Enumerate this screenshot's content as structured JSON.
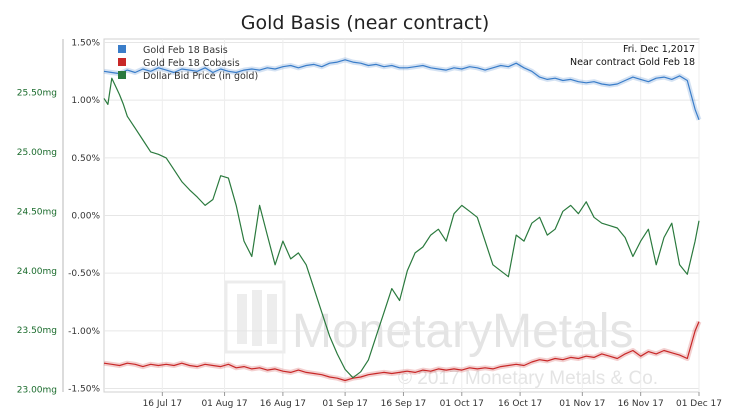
{
  "chart_data": {
    "type": "line",
    "title": "Gold Basis (near contract)",
    "info_lines": [
      "Fri. Dec 1,2017",
      "Near contract Gold Feb 18"
    ],
    "watermark": {
      "brand": "MonetaryMetals",
      "copyright": "© 2017 Monetary Metals & Co."
    },
    "x_tick_labels": [
      "16 Jul 17",
      "01 Aug 17",
      "16 Aug 17",
      "01 Sep 17",
      "16 Sep 17",
      "01 Oct 17",
      "16 Oct 17",
      "01 Nov 17",
      "16 Nov 17",
      "01 Dec 17"
    ],
    "x_tick_days": [
      15,
      31,
      46,
      62,
      77,
      92,
      107,
      123,
      138,
      153
    ],
    "xlim": [
      0,
      153
    ],
    "left_axis": {
      "ticks": [
        23.0,
        23.5,
        24.0,
        24.5,
        25.0,
        25.5
      ],
      "tick_labels": [
        "23.00mg",
        "23.50mg",
        "24.00mg",
        "24.50mg",
        "25.00mg",
        "25.50mg"
      ],
      "ylim": [
        22.98,
        25.95
      ],
      "color": "#1a6b2c"
    },
    "right_axis": {
      "ticks": [
        -1.5,
        -1.0,
        -0.5,
        0.0,
        0.5,
        1.0,
        1.5
      ],
      "tick_labels": [
        "-1.50%",
        "-1.00%",
        "-0.50%",
        "0.00%",
        "0.50%",
        "1.00%",
        "1.50%"
      ],
      "ylim": [
        -1.53,
        1.53
      ]
    },
    "grid": true,
    "legend_position": "top-left",
    "series": [
      {
        "name": "Gold Feb 18 Basis",
        "color": "#3a7dc9",
        "axis": "percent",
        "x": [
          0,
          2,
          4,
          6,
          8,
          10,
          12,
          14,
          16,
          18,
          20,
          22,
          24,
          26,
          28,
          30,
          32,
          34,
          36,
          38,
          40,
          42,
          44,
          46,
          48,
          50,
          52,
          54,
          56,
          58,
          60,
          62,
          64,
          66,
          68,
          70,
          72,
          74,
          76,
          78,
          80,
          82,
          84,
          86,
          88,
          90,
          92,
          94,
          96,
          98,
          100,
          102,
          104,
          106,
          108,
          110,
          112,
          114,
          116,
          118,
          120,
          122,
          124,
          126,
          128,
          130,
          132,
          134,
          136,
          138,
          140,
          142,
          144,
          146,
          148,
          150,
          152,
          153
        ],
        "values": [
          1.25,
          1.24,
          1.23,
          1.26,
          1.24,
          1.27,
          1.25,
          1.28,
          1.26,
          1.24,
          1.27,
          1.26,
          1.25,
          1.28,
          1.24,
          1.27,
          1.25,
          1.24,
          1.26,
          1.27,
          1.26,
          1.28,
          1.27,
          1.29,
          1.3,
          1.28,
          1.3,
          1.31,
          1.29,
          1.32,
          1.33,
          1.35,
          1.33,
          1.32,
          1.3,
          1.31,
          1.29,
          1.3,
          1.28,
          1.28,
          1.29,
          1.3,
          1.28,
          1.27,
          1.26,
          1.28,
          1.27,
          1.29,
          1.28,
          1.26,
          1.28,
          1.3,
          1.29,
          1.32,
          1.28,
          1.25,
          1.2,
          1.18,
          1.19,
          1.17,
          1.18,
          1.16,
          1.15,
          1.16,
          1.14,
          1.13,
          1.14,
          1.17,
          1.2,
          1.18,
          1.16,
          1.19,
          1.2,
          1.18,
          1.21,
          1.17,
          0.92,
          0.83
        ]
      },
      {
        "name": "Gold Feb 18 Cobasis",
        "color": "#c82828",
        "axis": "percent",
        "x": [
          0,
          2,
          4,
          6,
          8,
          10,
          12,
          14,
          16,
          18,
          20,
          22,
          24,
          26,
          28,
          30,
          32,
          34,
          36,
          38,
          40,
          42,
          44,
          46,
          48,
          50,
          52,
          54,
          56,
          58,
          60,
          62,
          64,
          66,
          68,
          70,
          72,
          74,
          76,
          78,
          80,
          82,
          84,
          86,
          88,
          90,
          92,
          94,
          96,
          98,
          100,
          102,
          104,
          106,
          108,
          110,
          112,
          114,
          116,
          118,
          120,
          122,
          124,
          126,
          128,
          130,
          132,
          134,
          136,
          138,
          140,
          142,
          144,
          146,
          148,
          150,
          152,
          153
        ],
        "values": [
          -1.28,
          -1.29,
          -1.3,
          -1.28,
          -1.29,
          -1.31,
          -1.29,
          -1.3,
          -1.29,
          -1.3,
          -1.28,
          -1.3,
          -1.31,
          -1.29,
          -1.3,
          -1.31,
          -1.29,
          -1.32,
          -1.31,
          -1.33,
          -1.32,
          -1.34,
          -1.33,
          -1.35,
          -1.36,
          -1.34,
          -1.36,
          -1.37,
          -1.38,
          -1.4,
          -1.41,
          -1.43,
          -1.41,
          -1.4,
          -1.38,
          -1.37,
          -1.36,
          -1.37,
          -1.36,
          -1.35,
          -1.36,
          -1.34,
          -1.35,
          -1.33,
          -1.34,
          -1.33,
          -1.34,
          -1.32,
          -1.33,
          -1.32,
          -1.33,
          -1.31,
          -1.3,
          -1.29,
          -1.3,
          -1.27,
          -1.25,
          -1.26,
          -1.24,
          -1.25,
          -1.23,
          -1.24,
          -1.22,
          -1.23,
          -1.2,
          -1.22,
          -1.24,
          -1.2,
          -1.17,
          -1.22,
          -1.18,
          -1.2,
          -1.17,
          -1.19,
          -1.21,
          -1.24,
          -1.0,
          -0.92
        ]
      },
      {
        "name": "Dollar Bid Price (in gold)",
        "color": "#2b7a3e",
        "axis": "mg",
        "x": [
          0,
          1,
          2,
          3,
          4,
          5,
          6,
          8,
          10,
          12,
          14,
          16,
          18,
          20,
          22,
          24,
          26,
          28,
          30,
          32,
          34,
          36,
          38,
          40,
          42,
          44,
          46,
          48,
          50,
          52,
          54,
          56,
          58,
          60,
          62,
          64,
          66,
          68,
          70,
          72,
          74,
          76,
          78,
          80,
          82,
          84,
          86,
          88,
          90,
          92,
          94,
          96,
          98,
          100,
          102,
          104,
          106,
          108,
          110,
          112,
          114,
          116,
          118,
          120,
          122,
          124,
          126,
          128,
          130,
          132,
          134,
          136,
          138,
          140,
          142,
          144,
          146,
          148,
          150,
          152,
          153
        ],
        "values": [
          25.45,
          25.4,
          25.62,
          25.55,
          25.48,
          25.4,
          25.3,
          25.2,
          25.1,
          25.0,
          24.98,
          24.95,
          24.85,
          24.75,
          24.68,
          24.62,
          24.55,
          24.6,
          24.8,
          24.78,
          24.55,
          24.25,
          24.12,
          24.55,
          24.3,
          24.05,
          24.25,
          24.1,
          24.15,
          24.05,
          23.85,
          23.65,
          23.45,
          23.3,
          23.17,
          23.1,
          23.15,
          23.25,
          23.45,
          23.65,
          23.85,
          23.75,
          24.0,
          24.15,
          24.2,
          24.3,
          24.35,
          24.25,
          24.48,
          24.55,
          24.5,
          24.45,
          24.25,
          24.05,
          24.0,
          23.95,
          24.3,
          24.25,
          24.4,
          24.45,
          24.3,
          24.35,
          24.5,
          24.55,
          24.48,
          24.58,
          24.45,
          24.4,
          24.38,
          24.36,
          24.28,
          24.12,
          24.25,
          24.35,
          24.05,
          24.28,
          24.4,
          24.05,
          23.97,
          24.25,
          24.42
        ]
      }
    ]
  }
}
